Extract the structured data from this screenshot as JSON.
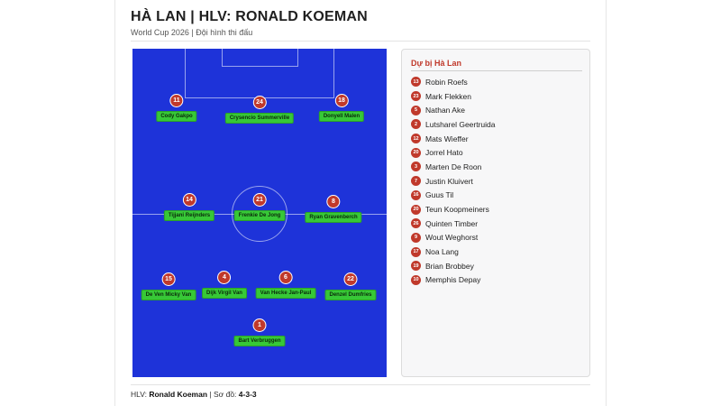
{
  "header": {
    "title": "HÀ LAN | HLV: RONALD KOEMAN",
    "subtitle": "World Cup 2026 | Đội hình thi đấu"
  },
  "lineup": [
    {
      "number": "11",
      "name": "Cody Gakpo"
    },
    {
      "number": "24",
      "name": "Crysencio Summerville"
    },
    {
      "number": "18",
      "name": "Donyell Malen"
    },
    {
      "number": "14",
      "name": "Tijjani Reijnders"
    },
    {
      "number": "21",
      "name": "Frenkie De Jong"
    },
    {
      "number": "8",
      "name": "Ryan Gravenberch"
    },
    {
      "number": "15",
      "name": "De Ven Micky Van"
    },
    {
      "number": "4",
      "name": "Dijk Virgil Van"
    },
    {
      "number": "6",
      "name": "Van Hecke Jan-Paul"
    },
    {
      "number": "22",
      "name": "Denzel Dumfries"
    },
    {
      "number": "1",
      "name": "Bart Verbruggen"
    }
  ],
  "subs": {
    "title": "Dự bị Hà Lan",
    "items": [
      {
        "number": "13",
        "name": "Robin Roefs"
      },
      {
        "number": "23",
        "name": "Mark Flekken"
      },
      {
        "number": "5",
        "name": "Nathan Ake"
      },
      {
        "number": "2",
        "name": "Lutsharel Geertruida"
      },
      {
        "number": "12",
        "name": "Mats Wieffer"
      },
      {
        "number": "20",
        "name": "Jorrel Hato"
      },
      {
        "number": "3",
        "name": "Marten De Roon"
      },
      {
        "number": "7",
        "name": "Justin Kluivert"
      },
      {
        "number": "16",
        "name": "Guus Til"
      },
      {
        "number": "20",
        "name": "Teun Koopmeiners"
      },
      {
        "number": "26",
        "name": "Quinten Timber"
      },
      {
        "number": "9",
        "name": "Wout Weghorst"
      },
      {
        "number": "17",
        "name": "Noa Lang"
      },
      {
        "number": "19",
        "name": "Brian Brobbey"
      },
      {
        "number": "10",
        "name": "Memphis Depay"
      }
    ]
  },
  "footer": {
    "coach_label": "HLV:",
    "coach_name": "Ronald Koeman",
    "separator": "|",
    "formation_label": "Sơ đồ:",
    "formation": "4-3-3"
  },
  "colors": {
    "pitch": "#1e33d9",
    "badge": "#c0392b",
    "name_tag": "#37c837",
    "subs_title": "#c0392b"
  }
}
